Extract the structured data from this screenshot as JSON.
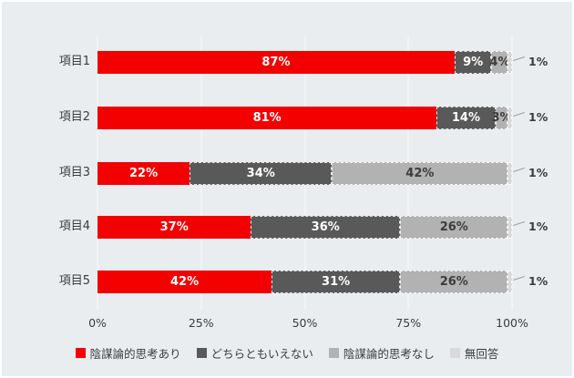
{
  "chart": {
    "background_color": "#e9edf0",
    "grid_color": "#f8fafb",
    "text_color": "#3c3c3c",
    "value_suffix": "%"
  },
  "chart_data": {
    "type": "bar",
    "orientation": "horizontal",
    "stacked": true,
    "title": "",
    "xlabel": "",
    "ylabel": "",
    "categories": [
      "項目1",
      "項目2",
      "項目3",
      "項目4",
      "項目5"
    ],
    "series": [
      {
        "name": "陰謀論的思考あり",
        "color": "#f30000",
        "label_color": "#ffffff",
        "values": [
          87,
          81,
          22,
          37,
          42
        ]
      },
      {
        "name": "どちらともいえない",
        "color": "#595959",
        "label_color": "#ffffff",
        "values": [
          9,
          14,
          34,
          36,
          31
        ]
      },
      {
        "name": "陰謀論的思考なし",
        "color": "#b2b2b2",
        "label_color": "#3c3c3c",
        "values": [
          4,
          3,
          42,
          26,
          26
        ]
      },
      {
        "name": "無回答",
        "color": "#d9d9d9",
        "label_color": "#3c3c3c",
        "values": [
          1,
          1,
          1,
          1,
          1
        ],
        "labels_outside": true
      }
    ],
    "value_labels": {
      "陰謀論的思考あり": [
        "87%",
        "81%",
        "22%",
        "37%",
        "42%"
      ],
      "どちらともいえない": [
        "9%",
        "14%",
        "34%",
        "36%",
        "31%"
      ],
      "陰謀論的思考なし": [
        "4%",
        "3%",
        "42%",
        "26%",
        "26%"
      ],
      "無回答": [
        "1%",
        "1%",
        "1%",
        "1%",
        "1%"
      ]
    },
    "x_ticks": [
      "0%",
      "25%",
      "50%",
      "75%",
      "100%"
    ],
    "x_tick_values": [
      0,
      25,
      50,
      75,
      100
    ],
    "xlim": [
      0,
      100
    ],
    "grid": true,
    "legend_position": "bottom"
  }
}
